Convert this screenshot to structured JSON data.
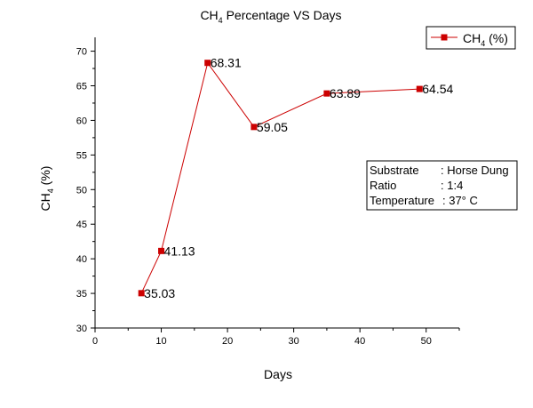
{
  "chart_data": {
    "type": "line",
    "title": {
      "main": "CH",
      "sub": "4",
      "rest": " Percentage VS Days"
    },
    "xlabel": "Days",
    "ylabel": {
      "main": "CH",
      "sub": "4",
      "rest": " (%)"
    },
    "xlim": [
      0,
      55
    ],
    "ylim": [
      30,
      72
    ],
    "xticks": [
      0,
      10,
      20,
      30,
      40,
      50
    ],
    "yticks": [
      30,
      35,
      40,
      45,
      50,
      55,
      60,
      65,
      70
    ],
    "grid": false,
    "legend": {
      "placement": "top-right",
      "label": {
        "main": "CH",
        "sub": "4",
        "rest": " (%)"
      }
    },
    "series": [
      {
        "name": "CH4 (%)",
        "color": "#cc0000",
        "marker": "square",
        "points": [
          {
            "x": 7,
            "y": 35.03,
            "label": "35.03"
          },
          {
            "x": 10,
            "y": 41.13,
            "label": "41.13"
          },
          {
            "x": 17,
            "y": 68.31,
            "label": "68.31"
          },
          {
            "x": 24,
            "y": 59.05,
            "label": "59.05"
          },
          {
            "x": 35,
            "y": 63.89,
            "label": "63.89"
          },
          {
            "x": 49,
            "y": 64.54,
            "label": "64.54"
          }
        ]
      }
    ],
    "annotation": {
      "rows": [
        {
          "key": "Substrate",
          "value": ": Horse Dung"
        },
        {
          "key": "Ratio",
          "value": ": 1:4"
        },
        {
          "key": "Temperature",
          "value": ": 37° C"
        }
      ]
    }
  }
}
